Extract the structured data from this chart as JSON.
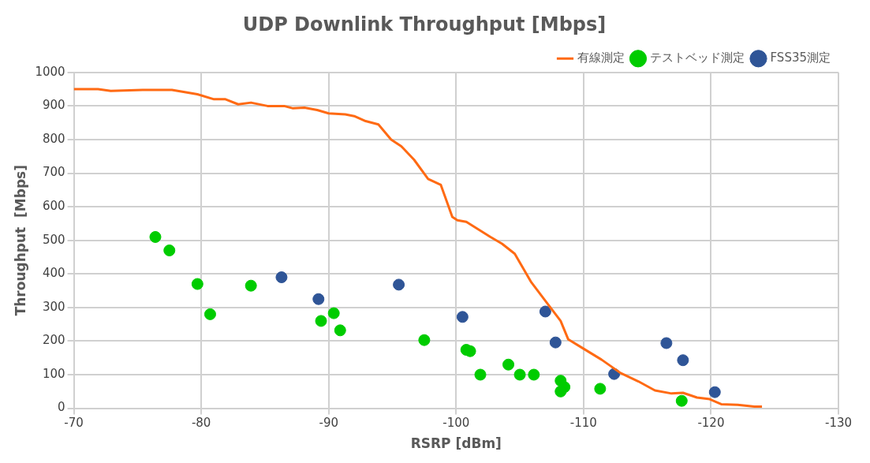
{
  "chart_data": {
    "type": "scatter",
    "title": "UDP Downlink Throughput [Mbps]",
    "xlabel": "RSRP [dBm]",
    "ylabel": "Throughput  [Mbps]",
    "xlim": [
      -70,
      -130
    ],
    "xticks": [
      -70,
      -80,
      -90,
      -100,
      -110,
      -120,
      -130
    ],
    "ylim": [
      0,
      1000
    ],
    "yticks": [
      0,
      100,
      200,
      300,
      400,
      500,
      600,
      700,
      800,
      900,
      1000
    ],
    "grid": true,
    "legend": "top right",
    "series": [
      {
        "name": "有線測定",
        "type": "line",
        "marker": "none",
        "line_style": "solid",
        "color": "#ff6a13",
        "x": [
          -70,
          -71.9,
          -72.9,
          -75.4,
          -77.7,
          -79.7,
          -81.0,
          -81.9,
          -82.9,
          -83.9,
          -85.2,
          -86.5,
          -87.2,
          -88.1,
          -89.1,
          -90.0,
          -91.3,
          -92.0,
          -92.9,
          -93.9,
          -94.9,
          -95.7,
          -96.7,
          -97.8,
          -98.8,
          -99.7,
          -100.1,
          -100.8,
          -102.7,
          -103.6,
          -104.6,
          -105.9,
          -107.2,
          -108.2,
          -108.8,
          -109.8,
          -111.4,
          -112.9,
          -114.3,
          -115.6,
          -116.9,
          -117.8,
          -118.9,
          -119.9,
          -120.8,
          -122.1,
          -123.4,
          -124.0
        ],
        "values": [
          950,
          950,
          945,
          948,
          948,
          935,
          920,
          920,
          905,
          910,
          900,
          900,
          893,
          895,
          888,
          878,
          875,
          870,
          855,
          845,
          800,
          780,
          740,
          683,
          665,
          570,
          560,
          555,
          510,
          490,
          460,
          375,
          310,
          260,
          205,
          182,
          145,
          105,
          80,
          53,
          44,
          46,
          32,
          27,
          12,
          10,
          5,
          5
        ]
      },
      {
        "name": "テストベッド測定",
        "type": "scatter",
        "marker": "circle",
        "color": "#00cc00",
        "x": [
          -76.4,
          -77.5,
          -79.7,
          -80.7,
          -83.9,
          -89.4,
          -90.4,
          -90.9,
          -97.5,
          -100.8,
          -101.1,
          -101.9,
          -104.1,
          -105.0,
          -106.1,
          -108.2,
          -108.5,
          -108.2,
          -111.3,
          -117.7
        ],
        "values": [
          510,
          470,
          370,
          280,
          365,
          260,
          283,
          232,
          203,
          174,
          170,
          100,
          130,
          100,
          100,
          82,
          63,
          50,
          58,
          22
        ]
      },
      {
        "name": "FSS35測定",
        "type": "scatter",
        "marker": "circle",
        "color": "#2f5597",
        "x": [
          -86.3,
          -89.2,
          -95.5,
          -100.5,
          -107.0,
          -107.8,
          -112.4,
          -116.5,
          -117.8,
          -120.3
        ],
        "values": [
          390,
          325,
          368,
          272,
          288,
          196,
          102,
          194,
          143,
          48
        ]
      }
    ]
  }
}
